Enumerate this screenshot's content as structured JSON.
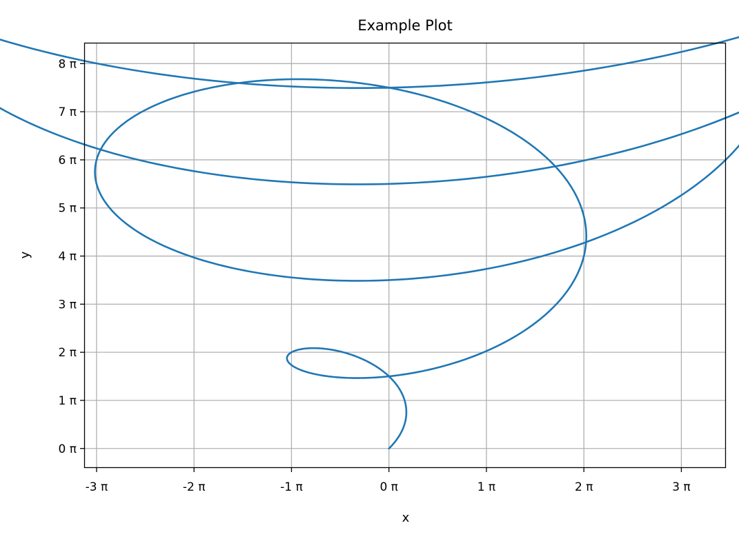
{
  "chart_data": {
    "type": "line",
    "title": "Example Plot",
    "xlabel": "x",
    "ylabel": "y",
    "x_ticks": [
      "-3 π",
      "-2 π",
      "-1 π",
      "0 π",
      "1 π",
      "2 π",
      "3 π"
    ],
    "y_ticks": [
      "0 π",
      "1 π",
      "2 π",
      "3 π",
      "4 π",
      "5 π",
      "6 π",
      "7 π",
      "8 π"
    ],
    "xlim": [
      -3.12,
      3.45
    ],
    "ylim": [
      -0.39,
      8.42
    ],
    "grid": true,
    "line_color": "#1f77b4",
    "series": [
      {
        "curve": "x = t·cos(t)/π, y = (t·sin(t) + 2t)/π",
        "t_range": [
          0,
          31.4
        ],
        "x": [
          0,
          0.08,
          0.01,
          -0.3,
          -0.07,
          0.64,
          -0.25,
          -0.94,
          0.03,
          1.26,
          -0.08,
          -1.57,
          -0.07,
          1.88,
          -0.29,
          -2.22,
          0.27,
          2.52,
          -0.33,
          -2.8,
          0.35,
          3.12
        ],
        "y": [
          0,
          0.21,
          0.63,
          0.6,
          0.46,
          1.36,
          2.38,
          1.86,
          1.11,
          2.73,
          4.27,
          3.01,
          1.72,
          3.89,
          6.12,
          4.29,
          2.98,
          4.88,
          8.02,
          5.63,
          2.99,
          6.28
        ]
      }
    ]
  }
}
